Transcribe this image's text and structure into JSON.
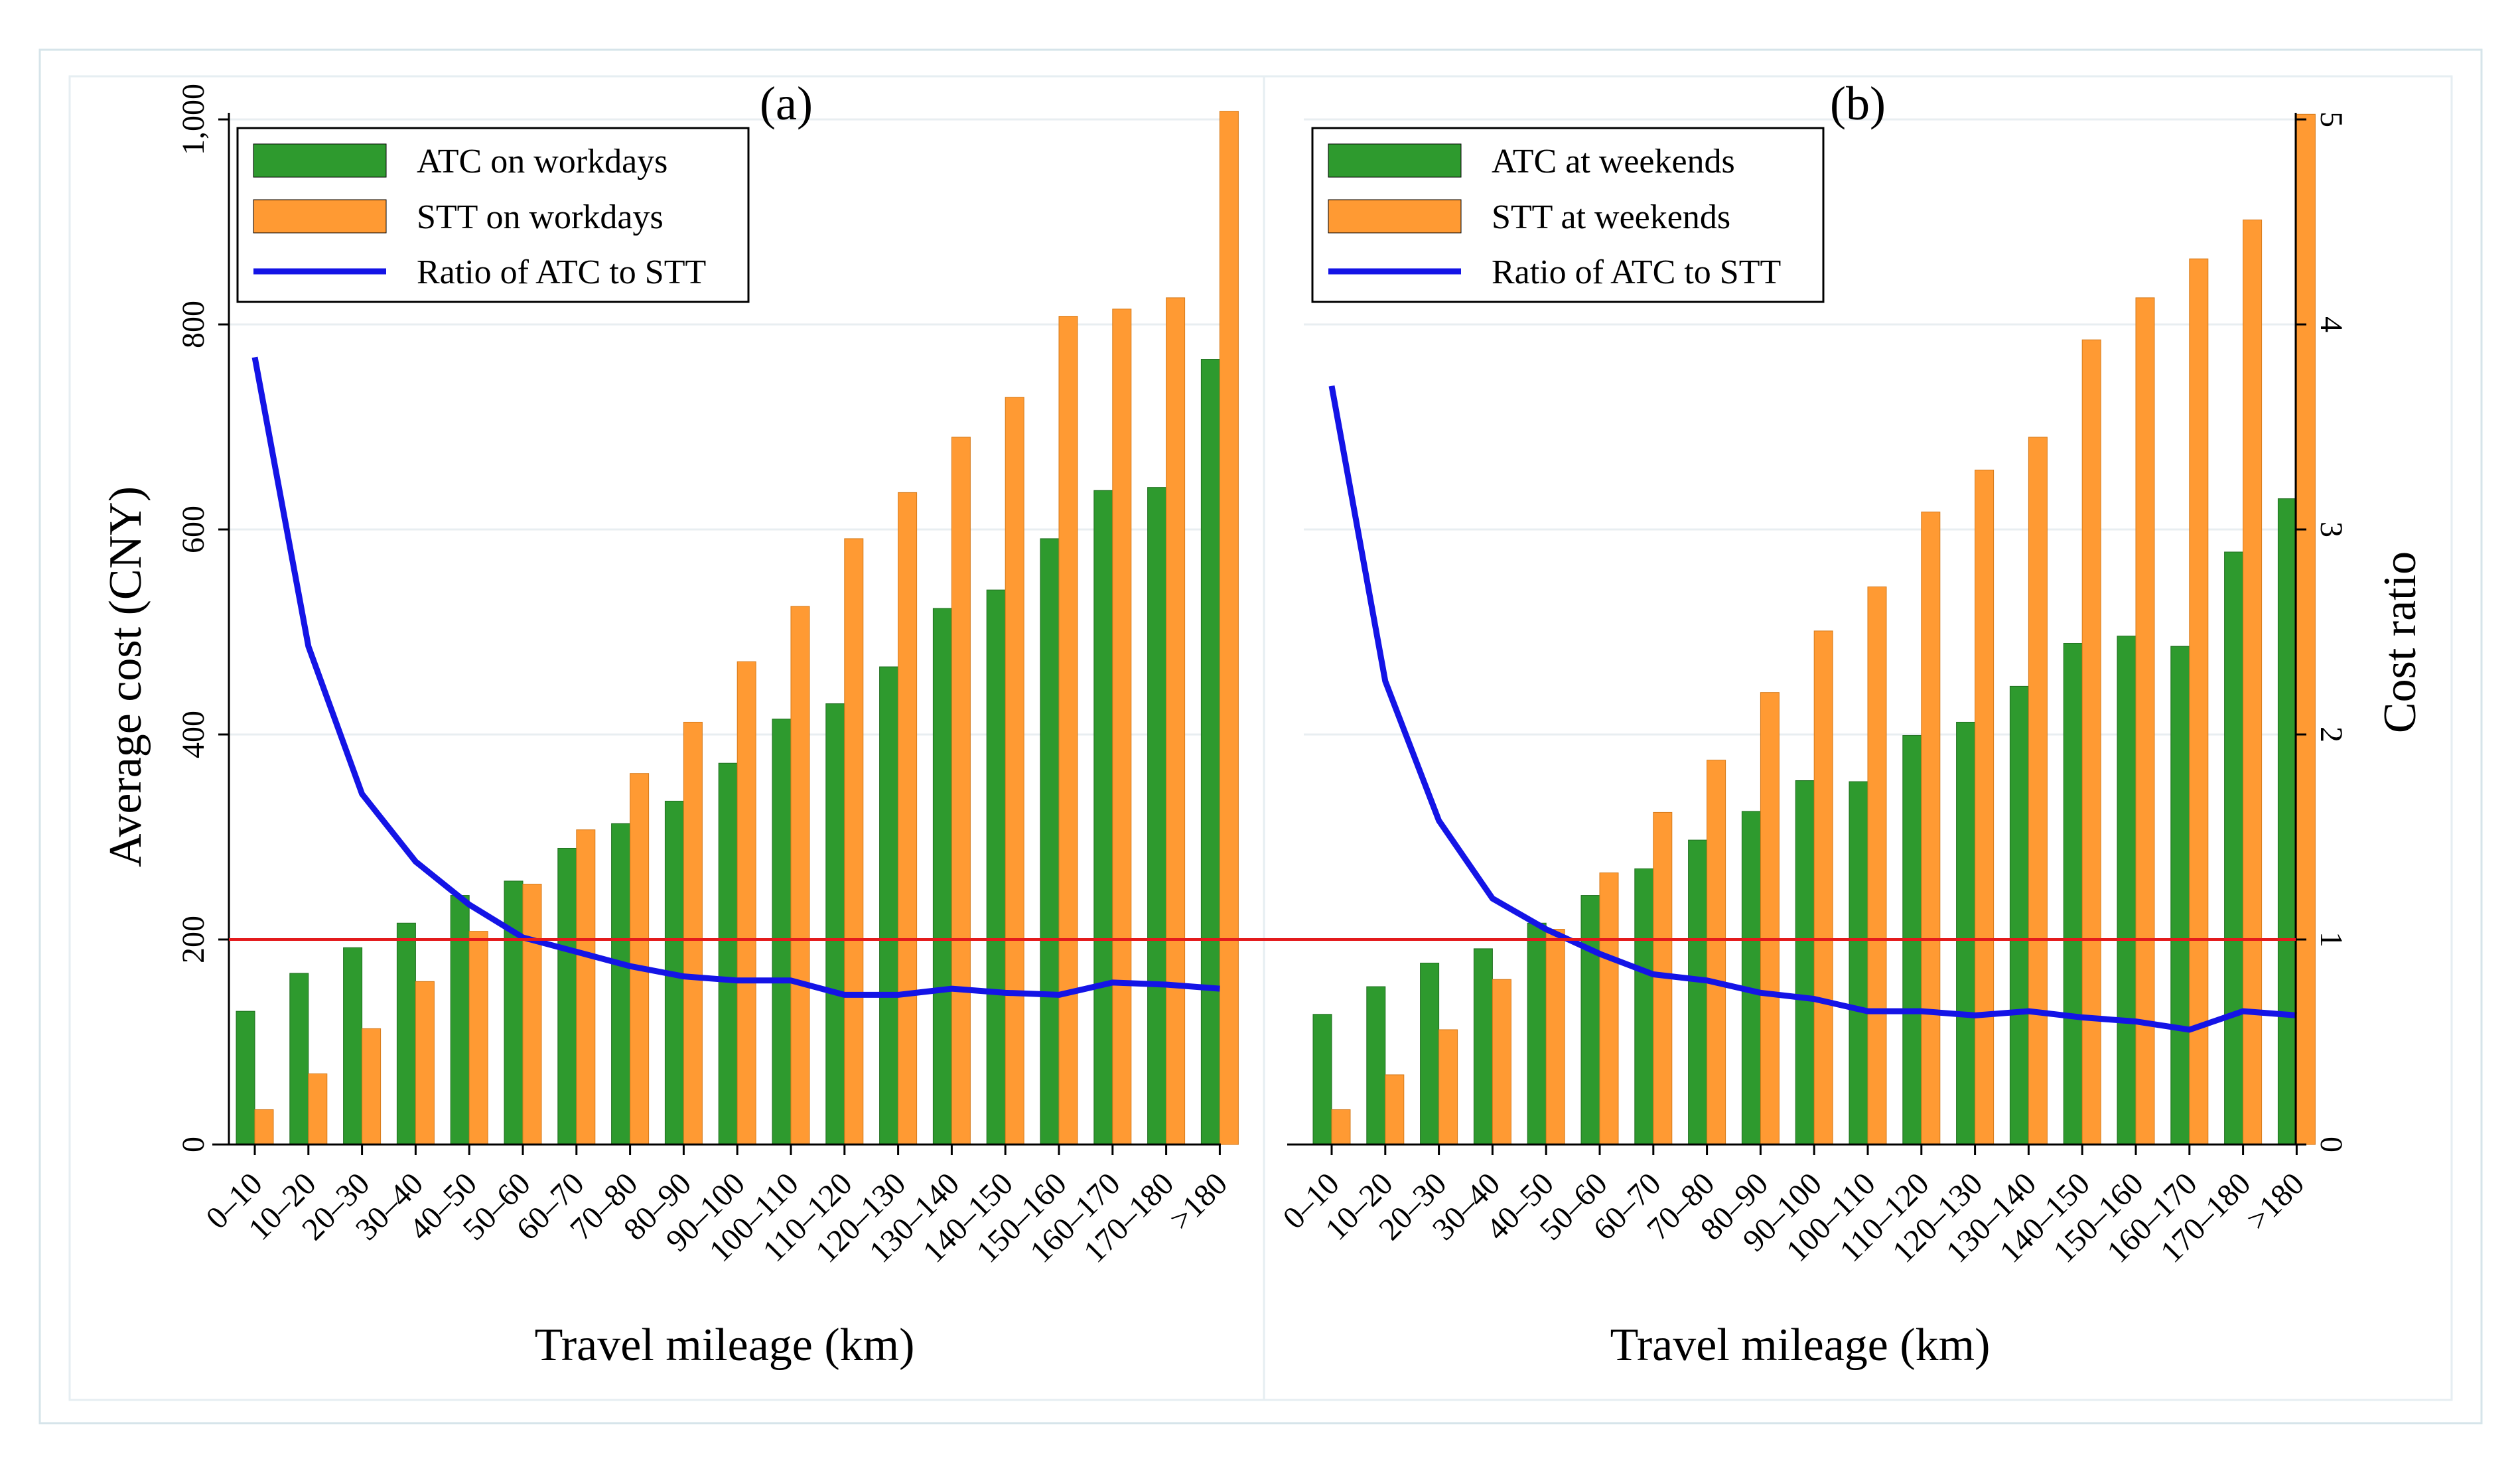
{
  "chart_data": [
    {
      "type": "bar",
      "panel_label": "(a)",
      "categories": [
        "0–10",
        "10–20",
        "20–30",
        "30–40",
        "40–50",
        "50–60",
        "60–70",
        "70–80",
        "80–90",
        "90–100",
        "100–110",
        "110–120",
        "120–130",
        "130–140",
        "140–150",
        "150–160",
        "160–170",
        "170–180",
        ">180"
      ],
      "series": [
        {
          "name": "ATC on workdays",
          "kind": "bar",
          "axis": "left",
          "color": "#2e9a2e",
          "values": [
            130,
            167,
            192,
            216,
            243,
            257,
            289,
            313,
            335,
            372,
            415,
            430,
            466,
            523,
            541,
            591,
            638,
            641,
            766
          ]
        },
        {
          "name": "STT on workdays",
          "kind": "bar",
          "axis": "left",
          "color": "#ff9a33",
          "values": [
            34,
            69,
            113,
            159,
            208,
            254,
            307,
            362,
            412,
            471,
            525,
            591,
            636,
            690,
            729,
            808,
            815,
            826,
            1008
          ]
        },
        {
          "name": "Ratio of ATC to STT",
          "kind": "line",
          "axis": "right",
          "color": "#1414e6",
          "values": [
            3.84,
            2.43,
            1.71,
            1.38,
            1.17,
            1.01,
            0.94,
            0.87,
            0.82,
            0.8,
            0.8,
            0.73,
            0.73,
            0.76,
            0.74,
            0.73,
            0.79,
            0.78,
            0.76
          ]
        }
      ],
      "reference_line": {
        "value": 1,
        "axis": "right",
        "color": "#e31a1c"
      },
      "xlabel": "Travel mileage (km)",
      "ylabel": "Average cost (CNY)",
      "ylim": [
        0,
        1000
      ],
      "yticks": [
        0,
        200,
        400,
        600,
        800,
        1000
      ],
      "ytick_labels": [
        "0",
        "200",
        "400",
        "600",
        "800",
        "1,000"
      ],
      "y2lim": [
        0,
        5
      ],
      "legend_position": "top-left"
    },
    {
      "type": "bar",
      "panel_label": "(b)",
      "categories": [
        "0–10",
        "10–20",
        "20–30",
        "30–40",
        "40–50",
        "50–60",
        "60–70",
        "70–80",
        "80–90",
        "90–100",
        "100–110",
        "110–120",
        "120–130",
        "130–140",
        "140–150",
        "150–160",
        "160–170",
        "170–180",
        ">180"
      ],
      "series": [
        {
          "name": "ATC at weekends",
          "kind": "bar",
          "axis": "left",
          "color": "#2e9a2e",
          "values": [
            127,
            154,
            177,
            191,
            216,
            243,
            269,
            297,
            325,
            355,
            354,
            399,
            412,
            447,
            489,
            496,
            486,
            578,
            630
          ]
        },
        {
          "name": "STT at weekends",
          "kind": "bar",
          "axis": "left",
          "color": "#ff9a33",
          "values": [
            34,
            68,
            112,
            161,
            210,
            265,
            324,
            375,
            441,
            501,
            544,
            617,
            658,
            690,
            785,
            826,
            864,
            902,
            1005
          ]
        },
        {
          "name": "Ratio of ATC to STT",
          "kind": "line",
          "axis": "right",
          "color": "#1414e6",
          "values": [
            3.7,
            2.26,
            1.58,
            1.2,
            1.05,
            0.93,
            0.83,
            0.8,
            0.74,
            0.71,
            0.65,
            0.65,
            0.63,
            0.65,
            0.62,
            0.6,
            0.56,
            0.65,
            0.63
          ]
        }
      ],
      "reference_line": {
        "value": 1,
        "axis": "right",
        "color": "#e31a1c"
      },
      "xlabel": "Travel mileage (km)",
      "ylabel": "Cost ratio",
      "ylim": [
        0,
        1000
      ],
      "y2lim": [
        0,
        5
      ],
      "y2ticks": [
        0,
        1,
        2,
        3,
        4,
        5
      ],
      "y2tick_labels": [
        "0",
        "1",
        "2",
        "3",
        "4",
        "5"
      ],
      "legend_position": "top-left"
    }
  ]
}
